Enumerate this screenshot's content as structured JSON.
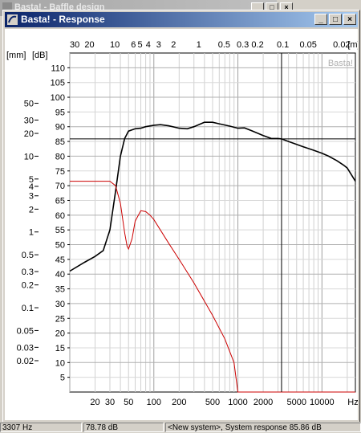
{
  "background_window": {
    "title": "Basta! - Baffle design"
  },
  "window": {
    "title": "Basta! - Response",
    "buttons": {
      "minimize": "_",
      "maximize": "□",
      "close": "×"
    }
  },
  "chart_data": {
    "type": "line",
    "watermark": "Basta!",
    "x_axis": {
      "label": "Hz",
      "scale": "log",
      "range": [
        10,
        25000
      ],
      "tick_labels": [
        "20",
        "30",
        "50",
        "100",
        "200",
        "500",
        "1000",
        "2000",
        "5000",
        "10000"
      ]
    },
    "top_axis": {
      "unit": "[m]",
      "tick_labels": [
        "30",
        "20",
        "10",
        "6",
        "5",
        "4",
        "3",
        "2",
        "1",
        "0.5",
        "0.3",
        "0.2",
        "0.1",
        "0.05",
        "0.02"
      ]
    },
    "y_axis_db": {
      "unit": "[dB]",
      "range": [
        0,
        115
      ],
      "tick_labels": [
        "110",
        "105",
        "100",
        "95",
        "90",
        "85",
        "80",
        "75",
        "70",
        "65",
        "60",
        "55",
        "50",
        "45",
        "40",
        "35",
        "30",
        "25",
        "20",
        "15",
        "10",
        "5"
      ]
    },
    "y_axis_mm": {
      "unit": "[mm]",
      "tick_labels": [
        "50",
        "30",
        "20",
        "10",
        "5",
        "4",
        "3",
        "2",
        "1",
        "0.5",
        "0.3",
        "0.2",
        "0.1",
        "0.05",
        "0.03",
        "0.02"
      ]
    },
    "series": [
      {
        "role": "SPL response",
        "color": "#000000",
        "x": [
          10,
          15,
          20,
          25,
          30,
          35,
          40,
          45,
          50,
          60,
          70,
          80,
          100,
          120,
          150,
          200,
          250,
          300,
          400,
          500,
          600,
          800,
          1000,
          1200,
          1500,
          2000,
          2500,
          3000,
          3307,
          4000,
          5000,
          6000,
          8000,
          10000,
          12000,
          15000,
          18000,
          20000,
          25000
        ],
        "y": [
          41,
          44,
          46,
          48,
          55,
          68,
          80,
          86,
          88.5,
          89.3,
          89.5,
          90,
          90.5,
          90.7,
          90.3,
          89.5,
          89.3,
          90,
          91.5,
          91.5,
          91,
          90.2,
          89.5,
          89.6,
          88.5,
          87,
          86,
          86,
          85.86,
          85,
          84,
          83.2,
          82,
          81,
          80,
          78.5,
          77,
          76,
          71.5
        ]
      },
      {
        "role": "excursion",
        "color": "#cc0000",
        "x": [
          10,
          20,
          30,
          35,
          40,
          45,
          48,
          50,
          55,
          60,
          70,
          80,
          90,
          100,
          150,
          200,
          300,
          500,
          700,
          900,
          1000,
          1500,
          2000,
          5000,
          10000,
          25000
        ],
        "y": [
          71.5,
          71.5,
          71.5,
          70,
          64,
          54,
          49.5,
          48.5,
          52,
          58,
          61.5,
          61.2,
          60,
          58.5,
          50.5,
          45,
          37,
          26,
          18,
          10,
          0,
          0,
          0,
          0,
          0,
          0
        ]
      }
    ],
    "cursor": {
      "x_hz": 3307,
      "y_db": 85.86
    }
  },
  "status": {
    "frequency": "3307 Hz",
    "level": "78.78 dB",
    "message": "<New system>, System response 85.86 dB"
  }
}
